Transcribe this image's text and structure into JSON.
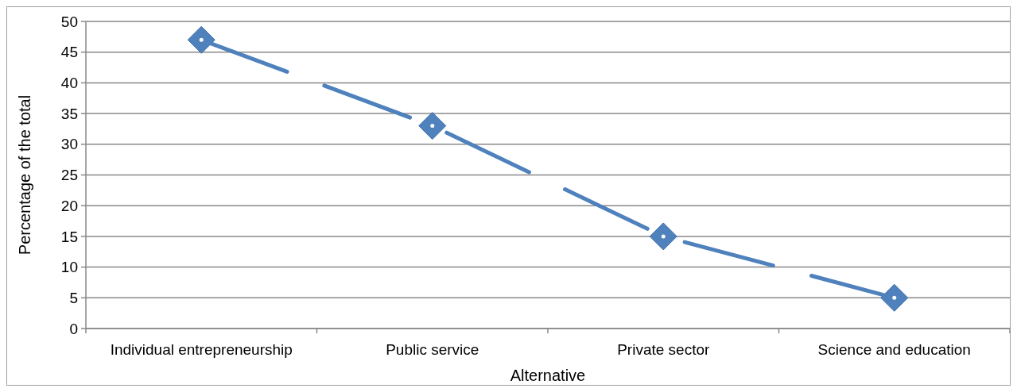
{
  "chart_data": {
    "type": "line",
    "xlabel": "Alternative",
    "ylabel": "Percentage of the total",
    "categories": [
      "Individual entrepreneurship",
      "Public service",
      "Private sector",
      "Science and education"
    ],
    "series": [
      {
        "color": "#4f81bd",
        "values": [
          47,
          33,
          15,
          5
        ]
      }
    ],
    "ylim": [
      0,
      50
    ],
    "yticks": [
      0,
      5,
      10,
      15,
      20,
      25,
      30,
      35,
      40,
      45,
      50
    ],
    "grid": "y",
    "marker": "diamond",
    "line_style": "dashed"
  }
}
